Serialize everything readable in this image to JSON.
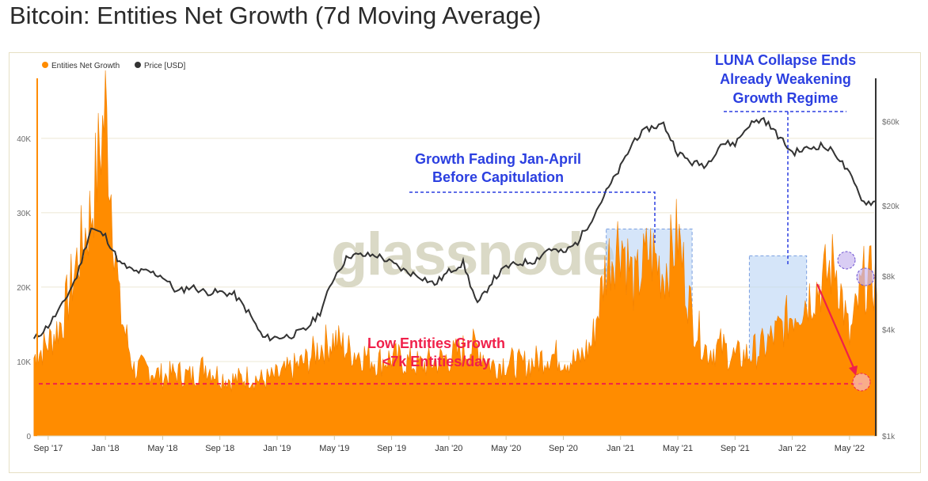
{
  "title": "Bitcoin: Entities Net Growth (7d Moving Average)",
  "watermark": "glassnode",
  "chart_data": {
    "type": "area",
    "legend": [
      {
        "name": "Entities Net Growth",
        "color": "#ff8c00"
      },
      {
        "name": "Price [USD]",
        "color": "#333333"
      }
    ],
    "legend_placement": "top-left",
    "grid": true,
    "x_ticks": [
      "Sep '17",
      "Jan '18",
      "May '18",
      "Sep '18",
      "Jan '19",
      "May '19",
      "Sep '19",
      "Jan '20",
      "May '20",
      "Sep '20",
      "Jan '21",
      "May '21",
      "Sep '21",
      "Jan '22",
      "May '22"
    ],
    "y_left": {
      "ticks": [
        "0",
        "10K",
        "20K",
        "30K",
        "40K"
      ],
      "ylim": [
        0,
        47000
      ]
    },
    "y_right": {
      "ticks": [
        "$1k",
        "$4k",
        "$8k",
        "$20k",
        "$60k"
      ],
      "scale": "log",
      "ylim": [
        1000,
        95000
      ]
    },
    "series": [
      {
        "name": "Entities Net Growth",
        "color": "#ff8c00",
        "x": [
          "2017-08",
          "2017-09",
          "2017-10",
          "2017-11",
          "2017-12",
          "2018-01",
          "2018-02",
          "2018-03",
          "2018-04",
          "2018-05",
          "2018-06",
          "2018-07",
          "2018-08",
          "2018-09",
          "2018-10",
          "2018-11",
          "2018-12",
          "2019-01",
          "2019-02",
          "2019-03",
          "2019-04",
          "2019-05",
          "2019-06",
          "2019-07",
          "2019-08",
          "2019-09",
          "2019-10",
          "2019-11",
          "2019-12",
          "2020-01",
          "2020-02",
          "2020-03",
          "2020-04",
          "2020-05",
          "2020-06",
          "2020-07",
          "2020-08",
          "2020-09",
          "2020-10",
          "2020-11",
          "2020-12",
          "2021-01",
          "2021-02",
          "2021-03",
          "2021-04",
          "2021-05",
          "2021-06",
          "2021-07",
          "2021-08",
          "2021-09",
          "2021-10",
          "2021-11",
          "2021-12",
          "2022-01",
          "2022-02",
          "2022-03",
          "2022-04",
          "2022-05",
          "2022-06"
        ],
        "values": [
          10500,
          12500,
          15500,
          23500,
          30000,
          44000,
          17000,
          9000,
          9000,
          8000,
          8500,
          8000,
          9500,
          8000,
          7500,
          8000,
          7500,
          8000,
          9000,
          10000,
          12000,
          13000,
          11500,
          11000,
          10000,
          10500,
          10000,
          9500,
          10000,
          10500,
          11500,
          12000,
          9500,
          10000,
          9500,
          10000,
          11000,
          10500,
          10000,
          12500,
          23000,
          27000,
          20000,
          25000,
          22000,
          27000,
          16000,
          11500,
          12000,
          10500,
          11000,
          12000,
          14000,
          16500,
          18500,
          20500,
          23500,
          13000,
          21000
        ]
      },
      {
        "name": "Price [USD]",
        "color": "#333333",
        "x": [
          "2017-08",
          "2017-09",
          "2017-10",
          "2017-11",
          "2017-12",
          "2018-01",
          "2018-02",
          "2018-03",
          "2018-04",
          "2018-05",
          "2018-06",
          "2018-07",
          "2018-08",
          "2018-09",
          "2018-10",
          "2018-11",
          "2018-12",
          "2019-01",
          "2019-02",
          "2019-03",
          "2019-04",
          "2019-05",
          "2019-06",
          "2019-07",
          "2019-08",
          "2019-09",
          "2019-10",
          "2019-11",
          "2019-12",
          "2020-01",
          "2020-02",
          "2020-03",
          "2020-04",
          "2020-05",
          "2020-06",
          "2020-07",
          "2020-08",
          "2020-09",
          "2020-10",
          "2020-11",
          "2020-12",
          "2021-01",
          "2021-02",
          "2021-03",
          "2021-04",
          "2021-05",
          "2021-06",
          "2021-07",
          "2021-08",
          "2021-09",
          "2021-10",
          "2021-11",
          "2021-12",
          "2022-01",
          "2022-02",
          "2022-03",
          "2022-04",
          "2022-05",
          "2022-06"
        ],
        "values": [
          3500,
          4200,
          5500,
          8000,
          15000,
          13500,
          9500,
          8500,
          8500,
          8000,
          6500,
          7000,
          6500,
          6500,
          6300,
          5000,
          3600,
          3600,
          3700,
          4000,
          5000,
          8000,
          10500,
          10500,
          10500,
          9500,
          8500,
          8000,
          7200,
          8500,
          9500,
          5500,
          7500,
          9000,
          9500,
          9800,
          11500,
          10800,
          12500,
          17000,
          24000,
          33000,
          48000,
          55000,
          58000,
          40000,
          35000,
          34000,
          45000,
          45000,
          58000,
          62000,
          50000,
          40000,
          42000,
          44000,
          40000,
          30000,
          21000
        ]
      }
    ],
    "annotations": [
      {
        "text": [
          "Growth Fading Jan-April",
          "Before Capitulation"
        ],
        "color": "#2b3fe0"
      },
      {
        "text": [
          "LUNA Collapse Ends",
          "Already Weakening",
          "Growth Regime"
        ],
        "color": "#2b3fe0"
      },
      {
        "text": [
          "Low Entities Growth",
          "<7k Entities/day"
        ],
        "color": "#f0204a"
      }
    ],
    "threshold_line": {
      "value": 7000,
      "color": "#f0204a"
    },
    "highlight_ranges": [
      {
        "from": "2020-12",
        "to": "2021-05"
      },
      {
        "from": "2021-10",
        "to": "2022-01"
      }
    ]
  }
}
